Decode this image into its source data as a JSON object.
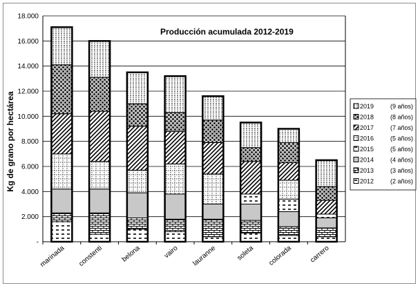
{
  "chart_data": {
    "type": "bar",
    "stacked": true,
    "title": "Producción acumulada 2012-2019",
    "ylabel": "Kg de grano por hectárea",
    "ylim": [
      0,
      18000
    ],
    "yticks": [
      "-",
      "2.000",
      "4.000",
      "6.000",
      "8.000",
      "10.000",
      "12.000",
      "14.000",
      "16.000",
      "18.000"
    ],
    "categories": [
      "marinada",
      "constenti",
      "belona",
      "vairo",
      "lauranne",
      "soleta",
      "colorada",
      "carrero"
    ],
    "legend_position": "right",
    "series": [
      {
        "name": "2012",
        "label": "(2 años)",
        "pattern": "p-dash",
        "values": [
          1600,
          600,
          1000,
          800,
          400,
          700,
          500,
          400
        ]
      },
      {
        "name": "2013",
        "label": "(3 años)",
        "pattern": "p-bricks",
        "values": [
          700,
          1700,
          900,
          1000,
          1400,
          1000,
          700,
          700
        ]
      },
      {
        "name": "2014",
        "label": "(4 años)",
        "pattern": "p-grey",
        "values": [
          1900,
          1900,
          2000,
          2000,
          1200,
          1300,
          1200,
          800
        ]
      },
      {
        "name": "2015",
        "label": "(5 años)",
        "pattern": "p-dash",
        "values": [
          0,
          0,
          0,
          0,
          0,
          800,
          1000,
          300
        ]
      },
      {
        "name": "2016",
        "label": "(5 años)",
        "pattern": "p-dots",
        "values": [
          2800,
          2200,
          1800,
          2400,
          2400,
          0,
          1500,
          0
        ]
      },
      {
        "name": "2017",
        "label": "(7 años)",
        "pattern": "p-diag",
        "values": [
          3200,
          4000,
          3500,
          2600,
          2500,
          2600,
          1400,
          1100
        ]
      },
      {
        "name": "2018",
        "label": "(8 años)",
        "pattern": "p-checker",
        "values": [
          3900,
          2700,
          1800,
          1500,
          1800,
          1100,
          1600,
          1100
        ]
      },
      {
        "name": "2019",
        "label": "(9 años)",
        "pattern": "p-vlines",
        "values": [
          3000,
          2900,
          2500,
          2900,
          1900,
          2000,
          1100,
          2100
        ]
      }
    ]
  }
}
